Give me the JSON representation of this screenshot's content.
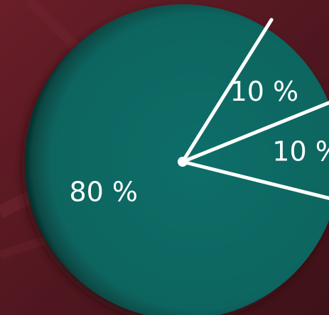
{
  "chart_data": {
    "type": "pie",
    "slices": [
      {
        "label": "10 %",
        "value": 10
      },
      {
        "label": "10 %",
        "value": 10
      },
      {
        "label": "80 %",
        "value": 80
      }
    ],
    "title": "",
    "legend": "none"
  },
  "colors": {
    "background": "#5a1821",
    "pie_fill": "#0c6963",
    "pie_edge": "#063b38",
    "divider": "#ffffff",
    "label": "#ffffff"
  }
}
